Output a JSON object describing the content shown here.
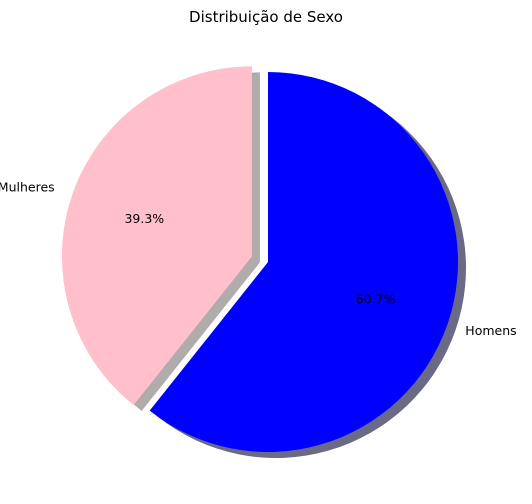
{
  "chart_data": {
    "type": "pie",
    "title": "Distribuição de Sexo",
    "slices": [
      {
        "label": "Homens",
        "value": 60.7,
        "pct_label": "60.7%",
        "color": "#0000ff"
      },
      {
        "label": "Mulheres",
        "value": 39.3,
        "pct_label": "39.3%",
        "color": "#ffc0cb",
        "exploded": true
      }
    ],
    "shadow": true,
    "start": "top, clockwise",
    "legend": "none"
  }
}
